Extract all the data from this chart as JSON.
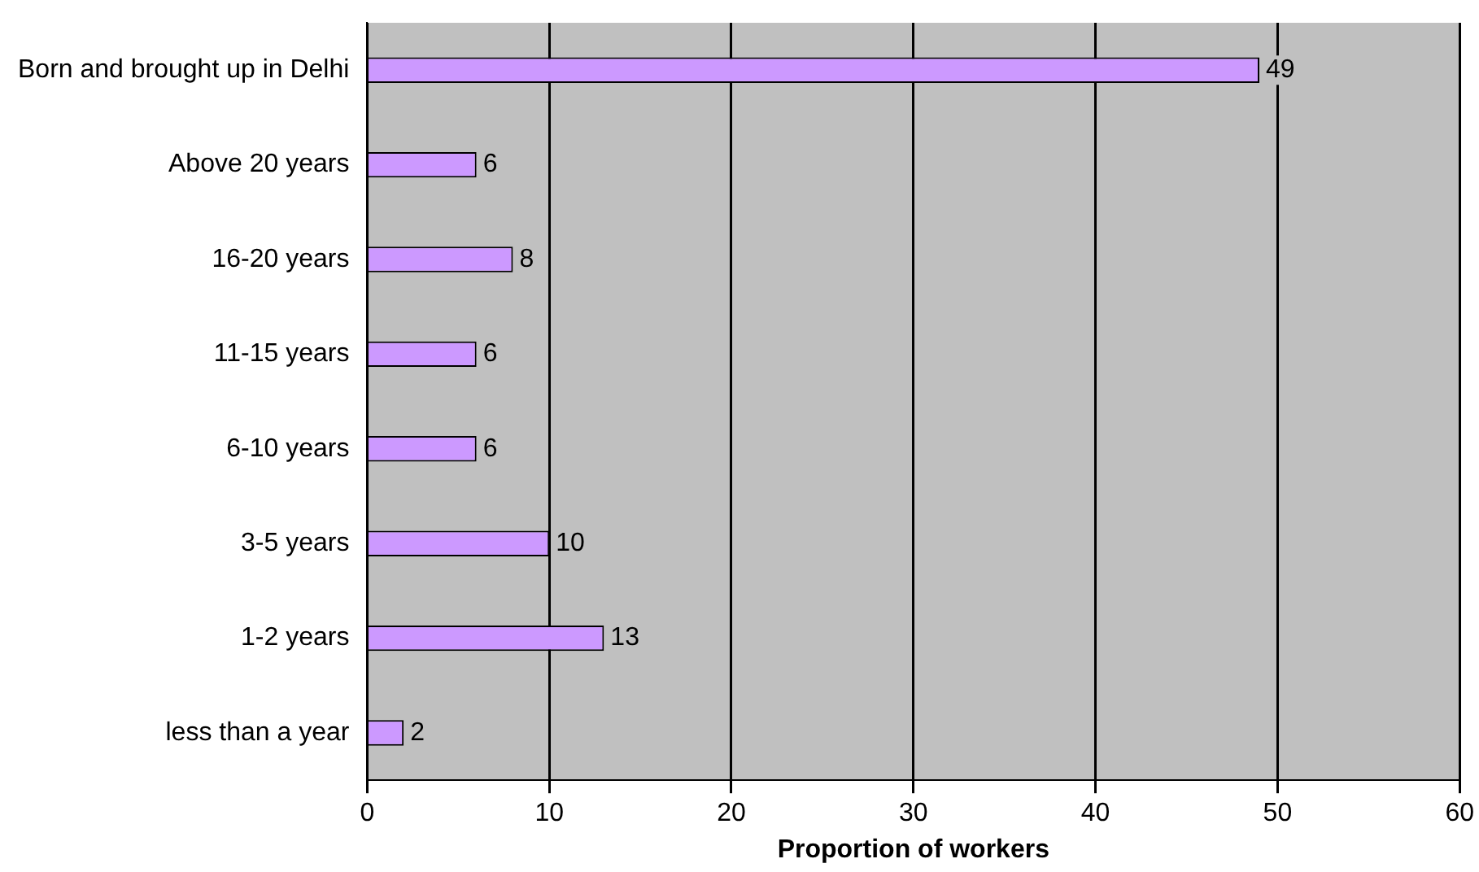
{
  "chart_data": {
    "type": "bar",
    "orientation": "horizontal",
    "xlabel": "Proportion of workers",
    "categories": [
      "Born and brought up in Delhi",
      "Above 20 years",
      "16-20 years",
      "11-15 years",
      "6-10 years",
      "3-5 years",
      "1-2 years",
      "less than a year"
    ],
    "values": [
      49,
      6,
      8,
      6,
      6,
      10,
      13,
      2
    ],
    "color": "#cc99ff",
    "xlim": [
      0,
      60
    ],
    "xticks": [
      0,
      10,
      20,
      30,
      40,
      50,
      60
    ],
    "grid": "x",
    "legend": false,
    "data_labels": true
  }
}
